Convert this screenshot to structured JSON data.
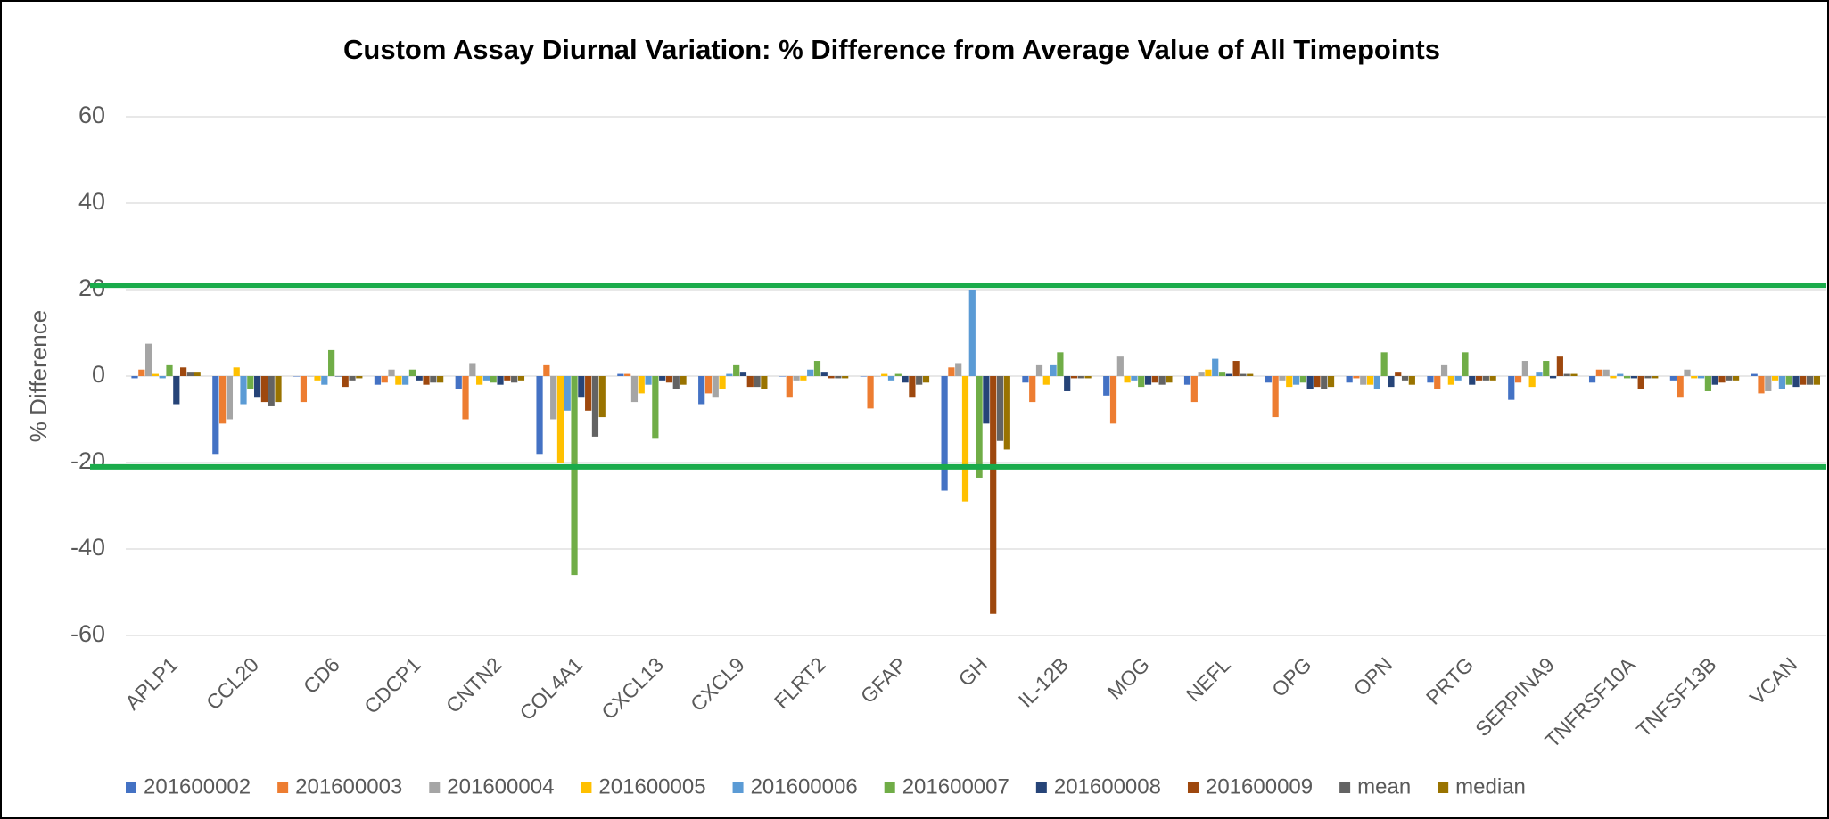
{
  "chart_data": {
    "type": "bar",
    "title": "Custom Assay Diurnal Variation: % Difference from Average Value of All Timepoints",
    "ylabel": "% Difference",
    "categories": [
      "APLP1",
      "CCL20",
      "CD6",
      "CDCP1",
      "CNTN2",
      "COL4A1",
      "CXCL13",
      "CXCL9",
      "FLRT2",
      "GFAP",
      "GH",
      "IL-12B",
      "MOG",
      "NEFL",
      "OPG",
      "OPN",
      "PRTG",
      "SERPINA9",
      "TNFRSF10A",
      "TNFSF13B",
      "VCAN"
    ],
    "series": [
      {
        "name": "201600002",
        "color": "#4472c4",
        "values": [
          -0.5,
          -18,
          0,
          -2,
          -3,
          -18,
          0.5,
          -6.5,
          0,
          0,
          -26.5,
          -1.5,
          -4.5,
          -2,
          -1.5,
          -1.5,
          -1.5,
          -5.5,
          -1.5,
          -1,
          0.5
        ]
      },
      {
        "name": "201600003",
        "color": "#ed7d31",
        "values": [
          1.5,
          -11,
          -6,
          -1.5,
          -10,
          2.5,
          0.5,
          -4,
          -5,
          -7.5,
          2,
          -6,
          -11,
          -6,
          -9.5,
          -0.5,
          -3,
          -1.5,
          1.5,
          -5,
          -4
        ]
      },
      {
        "name": "201600004",
        "color": "#a5a5a5",
        "values": [
          7.5,
          -10,
          0,
          1.5,
          3,
          -10,
          -6,
          -5,
          -1,
          0,
          3,
          2.5,
          4.5,
          1,
          -1,
          -2,
          2.5,
          3.5,
          1.5,
          1.5,
          -3.5
        ]
      },
      {
        "name": "201600005",
        "color": "#ffc000",
        "values": [
          0.5,
          2,
          -1,
          -2,
          -2,
          -20,
          -4,
          -3,
          -1,
          0.5,
          -29,
          -2,
          -1.5,
          1.5,
          -2.5,
          -2,
          -2,
          -2.5,
          -0.5,
          -0.5,
          -1
        ]
      },
      {
        "name": "201600006",
        "color": "#5b9bd5",
        "values": [
          -0.5,
          -6.5,
          -2,
          -2,
          -1,
          -8,
          -2,
          0.5,
          1.5,
          -1,
          20,
          2.5,
          -1,
          4,
          -2,
          -3,
          -1,
          1,
          0.5,
          -0.5,
          -3
        ]
      },
      {
        "name": "201600007",
        "color": "#70ad47",
        "values": [
          2.5,
          -3,
          6,
          1.5,
          -1.5,
          -46,
          -14.5,
          2.5,
          3.5,
          0.5,
          -23.5,
          5.5,
          -2.5,
          1,
          -1.5,
          5.5,
          5.5,
          3.5,
          -0.5,
          -3.5,
          -2
        ]
      },
      {
        "name": "201600008",
        "color": "#264478",
        "values": [
          -6.5,
          -5,
          0,
          -1,
          -2,
          -5,
          -1,
          1,
          1,
          -1.5,
          -11,
          -3.5,
          -2,
          0.5,
          -3,
          -2.5,
          -2,
          -0.5,
          -0.5,
          -2,
          -2.5
        ]
      },
      {
        "name": "201600009",
        "color": "#9e480e",
        "values": [
          2,
          -6,
          -2.5,
          -2,
          -1,
          -8,
          -1.5,
          -2.5,
          -0.5,
          -5,
          -55,
          -0.5,
          -1.5,
          3.5,
          -2.5,
          1,
          -1,
          4.5,
          -3,
          -1.5,
          -2
        ]
      },
      {
        "name": "mean",
        "color": "#636363",
        "values": [
          1,
          -7,
          -1,
          -1.5,
          -1.5,
          -14,
          -3,
          -2.5,
          -0.5,
          -2,
          -15,
          -0.5,
          -2,
          0.5,
          -3,
          -1,
          -1,
          0.5,
          -0.5,
          -1,
          -2
        ]
      },
      {
        "name": "median",
        "color": "#997300",
        "values": [
          1,
          -6,
          -0.5,
          -1.5,
          -1,
          -9.5,
          -2,
          -3,
          -0.5,
          -1.5,
          -17,
          -0.5,
          -1.5,
          0.5,
          -2.5,
          -2,
          -1,
          0.5,
          -0.5,
          -1,
          -2
        ]
      }
    ],
    "ylim": [
      -60,
      60
    ],
    "yticks": [
      -60,
      -40,
      -20,
      0,
      20,
      40,
      60
    ],
    "grid": true,
    "reference_lines": [
      21,
      -21
    ],
    "reference_color": "#1aab4b",
    "legend": "bottom"
  }
}
